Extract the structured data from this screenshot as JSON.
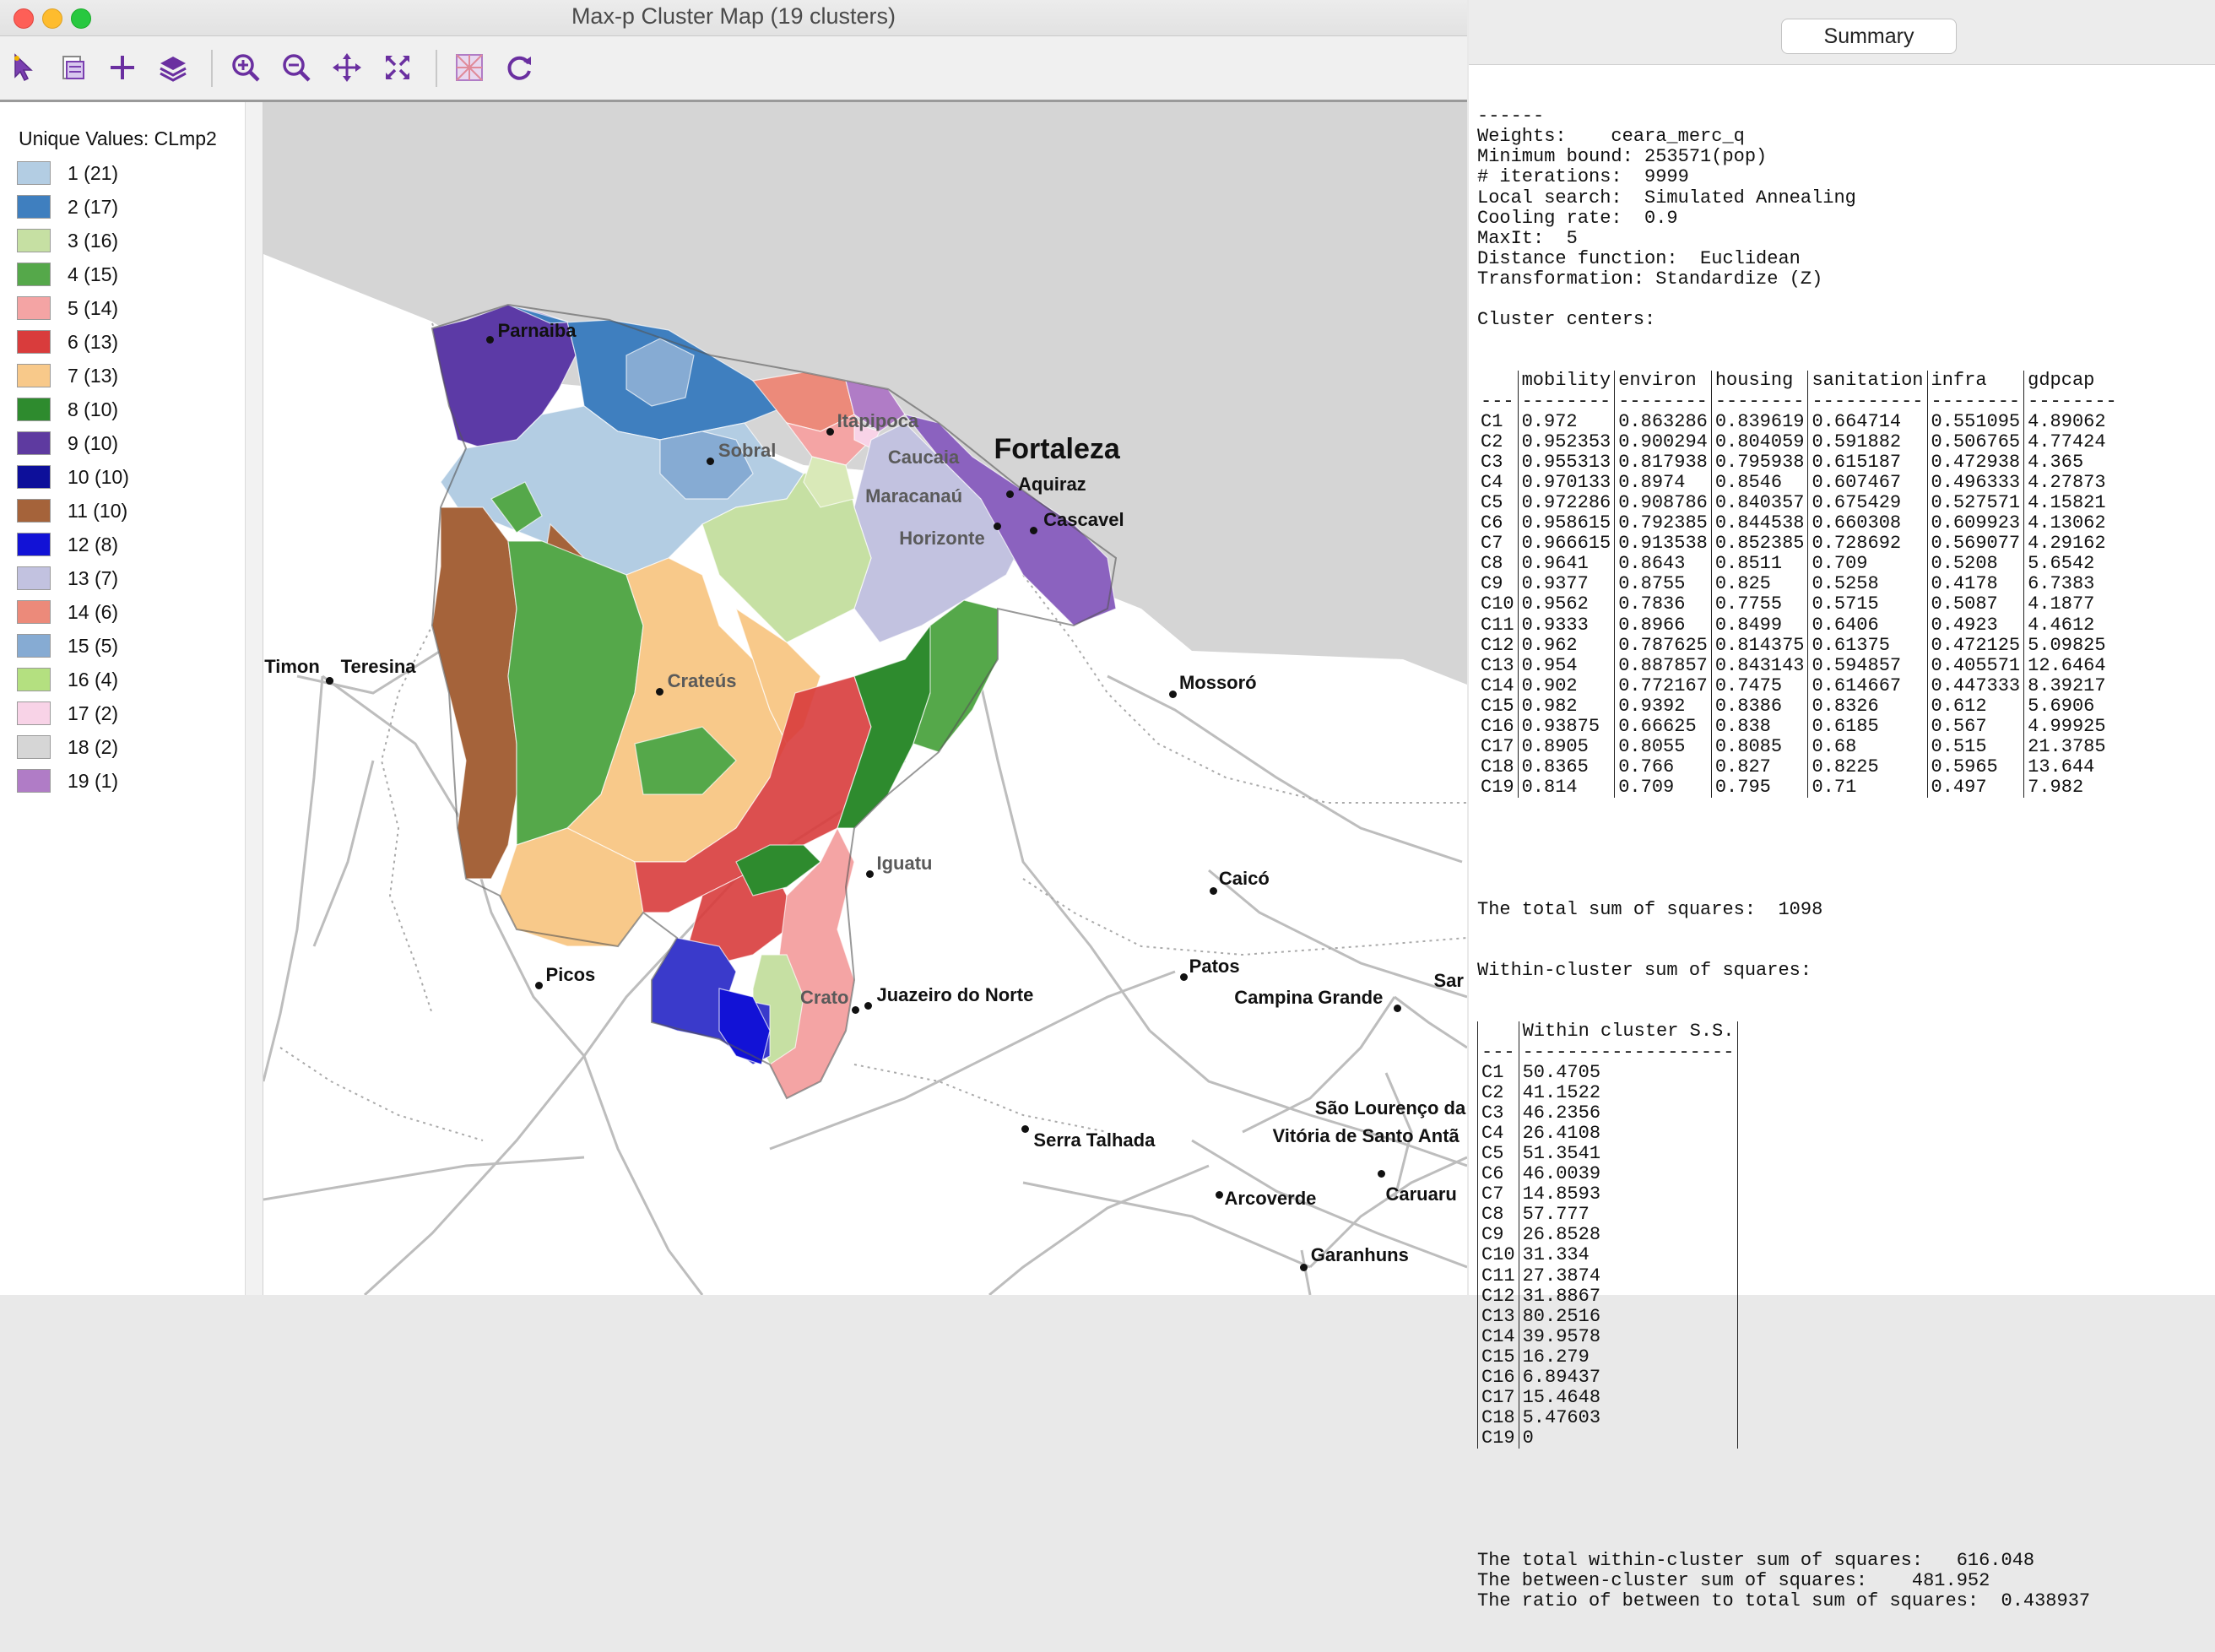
{
  "window": {
    "title": "Max-p Cluster Map (19 clusters)"
  },
  "toolbar": {
    "icons": [
      "select-arrow-icon",
      "save-selection-icon",
      "add-plus-icon",
      "layers-icon",
      "zoom-in-icon",
      "zoom-out-icon",
      "pan-icon",
      "full-extent-icon",
      "basemap-icon",
      "refresh-icon"
    ]
  },
  "legend": {
    "title": "Unique Values: CLmp2",
    "items": [
      {
        "label": "1 (21)",
        "color": "#b3cde3"
      },
      {
        "label": "2 (17)",
        "color": "#3f7fbf"
      },
      {
        "label": "3 (16)",
        "color": "#c6e0a3"
      },
      {
        "label": "4 (15)",
        "color": "#55a84a"
      },
      {
        "label": "5 (14)",
        "color": "#f4a4a4"
      },
      {
        "label": "6 (13)",
        "color": "#d93c3c"
      },
      {
        "label": "7 (13)",
        "color": "#f8c98a"
      },
      {
        "label": "8 (10)",
        "color": "#2e8b2e"
      },
      {
        "label": "9 (10)",
        "color": "#5e3aa0"
      },
      {
        "label": "10 (10)",
        "color": "#0d0f9a"
      },
      {
        "label": "11 (10)",
        "color": "#a5633a"
      },
      {
        "label": "12 (8)",
        "color": "#1212d6"
      },
      {
        "label": "13 (7)",
        "color": "#c2c2e0"
      },
      {
        "label": "14 (6)",
        "color": "#ec8a7a"
      },
      {
        "label": "15 (5)",
        "color": "#86abd3"
      },
      {
        "label": "16 (4)",
        "color": "#b4e080"
      },
      {
        "label": "17 (2)",
        "color": "#f8d3e7"
      },
      {
        "label": "18 (2)",
        "color": "#d6d6d6"
      },
      {
        "label": "19 (1)",
        "color": "#b07cc6"
      }
    ]
  },
  "map": {
    "cities": [
      {
        "name": "Parnaiba",
        "dim": false
      },
      {
        "name": "Itapipoca",
        "dim": true
      },
      {
        "name": "Sobral",
        "dim": true
      },
      {
        "name": "Caucaia",
        "dim": true
      },
      {
        "name": "Fortaleza",
        "dim": false
      },
      {
        "name": "Maracanaú",
        "dim": true
      },
      {
        "name": "Aquiraz",
        "dim": false
      },
      {
        "name": "Cascavel",
        "dim": false
      },
      {
        "name": "Horizonte",
        "dim": true
      },
      {
        "name": "Timon",
        "dim": false
      },
      {
        "name": "Teresina",
        "dim": false
      },
      {
        "name": "Crateús",
        "dim": true
      },
      {
        "name": "Mossoró",
        "dim": false
      },
      {
        "name": "Iguatu",
        "dim": true
      },
      {
        "name": "Caicó",
        "dim": false
      },
      {
        "name": "Picos",
        "dim": false
      },
      {
        "name": "Patos",
        "dim": false
      },
      {
        "name": "Crato",
        "dim": true
      },
      {
        "name": "Juazeiro do Norte",
        "dim": false
      },
      {
        "name": "Campina Grande",
        "dim": false
      },
      {
        "name": "Sar",
        "dim": false
      },
      {
        "name": "São Lourenço da",
        "dim": false
      },
      {
        "name": "Vitória de Santo Antã",
        "dim": false
      },
      {
        "name": "Serra Talhada",
        "dim": false
      },
      {
        "name": "Caruaru",
        "dim": false
      },
      {
        "name": "Arcoverde",
        "dim": false
      },
      {
        "name": "Garanhuns",
        "dim": false
      }
    ]
  },
  "summary": {
    "tab_label": "Summary",
    "header_lines": [
      "------",
      "Weights:    ceara_merc_q",
      "Minimum bound: 253571(pop)",
      "# iterations:  9999",
      "Local search:  Simulated Annealing",
      "Cooling rate:  0.9",
      "MaxIt:  5",
      "Distance function:  Euclidean",
      "Transformation: Standardize (Z)",
      "",
      "Cluster centers:"
    ],
    "centers_columns": [
      "",
      "mobility",
      "environ",
      "housing",
      "sanitation",
      "infra",
      "gdpcap"
    ],
    "centers_rule": [
      "---",
      "--------",
      "--------",
      "--------",
      "----------",
      "--------",
      "--------"
    ],
    "centers_rows": [
      [
        "C1",
        "0.972",
        "0.863286",
        "0.839619",
        "0.664714",
        "0.551095",
        "4.89062"
      ],
      [
        "C2",
        "0.952353",
        "0.900294",
        "0.804059",
        "0.591882",
        "0.506765",
        "4.77424"
      ],
      [
        "C3",
        "0.955313",
        "0.817938",
        "0.795938",
        "0.615187",
        "0.472938",
        "4.365"
      ],
      [
        "C4",
        "0.970133",
        "0.8974",
        "0.8546",
        "0.607467",
        "0.496333",
        "4.27873"
      ],
      [
        "C5",
        "0.972286",
        "0.908786",
        "0.840357",
        "0.675429",
        "0.527571",
        "4.15821"
      ],
      [
        "C6",
        "0.958615",
        "0.792385",
        "0.844538",
        "0.660308",
        "0.609923",
        "4.13062"
      ],
      [
        "C7",
        "0.966615",
        "0.913538",
        "0.852385",
        "0.728692",
        "0.569077",
        "4.29162"
      ],
      [
        "C8",
        "0.9641",
        "0.8643",
        "0.8511",
        "0.709",
        "0.5208",
        "5.6542"
      ],
      [
        "C9",
        "0.9377",
        "0.8755",
        "0.825",
        "0.5258",
        "0.4178",
        "6.7383"
      ],
      [
        "C10",
        "0.9562",
        "0.7836",
        "0.7755",
        "0.5715",
        "0.5087",
        "4.1877"
      ],
      [
        "C11",
        "0.9333",
        "0.8966",
        "0.8499",
        "0.6406",
        "0.4923",
        "4.4612"
      ],
      [
        "C12",
        "0.962",
        "0.787625",
        "0.814375",
        "0.61375",
        "0.472125",
        "5.09825"
      ],
      [
        "C13",
        "0.954",
        "0.887857",
        "0.843143",
        "0.594857",
        "0.405571",
        "12.6464"
      ],
      [
        "C14",
        "0.902",
        "0.772167",
        "0.7475",
        "0.614667",
        "0.447333",
        "8.39217"
      ],
      [
        "C15",
        "0.982",
        "0.9392",
        "0.8386",
        "0.8326",
        "0.612",
        "5.6906"
      ],
      [
        "C16",
        "0.93875",
        "0.66625",
        "0.838",
        "0.6185",
        "0.567",
        "4.99925"
      ],
      [
        "C17",
        "0.8905",
        "0.8055",
        "0.8085",
        "0.68",
        "0.515",
        "21.3785"
      ],
      [
        "C18",
        "0.8365",
        "0.766",
        "0.827",
        "0.8225",
        "0.5965",
        "13.644"
      ],
      [
        "C19",
        "0.814",
        "0.709",
        "0.795",
        "0.71",
        "0.497",
        "7.982"
      ]
    ],
    "total_ss": "The total sum of squares:  1098",
    "within_header": "Within-cluster sum of squares:",
    "within_columns": [
      "",
      "Within cluster S.S."
    ],
    "within_rule": [
      "---",
      "-------------------"
    ],
    "within_rows": [
      [
        "C1",
        "50.4705"
      ],
      [
        "C2",
        "41.1522"
      ],
      [
        "C3",
        "46.2356"
      ],
      [
        "C4",
        "26.4108"
      ],
      [
        "C5",
        "51.3541"
      ],
      [
        "C6",
        "46.0039"
      ],
      [
        "C7",
        "14.8593"
      ],
      [
        "C8",
        "57.777"
      ],
      [
        "C9",
        "26.8528"
      ],
      [
        "C10",
        "31.334"
      ],
      [
        "C11",
        "27.3874"
      ],
      [
        "C12",
        "31.8867"
      ],
      [
        "C13",
        "80.2516"
      ],
      [
        "C14",
        "39.9578"
      ],
      [
        "C15",
        "16.279"
      ],
      [
        "C16",
        "6.89437"
      ],
      [
        "C17",
        "15.4648"
      ],
      [
        "C18",
        "5.47603"
      ],
      [
        "C19",
        "0"
      ]
    ],
    "footer_lines": [
      "The total within-cluster sum of squares:   616.048",
      "The between-cluster sum of squares:    481.952",
      "The ratio of between to total sum of squares:  0.438937"
    ]
  }
}
